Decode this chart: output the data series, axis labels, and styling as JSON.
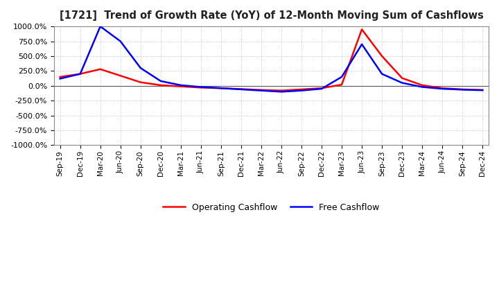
{
  "title": "[1721]  Trend of Growth Rate (YoY) of 12-Month Moving Sum of Cashflows",
  "ylim": [
    -1000,
    1000
  ],
  "yticks": [
    -1000,
    -750,
    -500,
    -250,
    0,
    250,
    500,
    750,
    1000
  ],
  "background_color": "#ffffff",
  "grid_color": "#aaaaaa",
  "operating_color": "#ff0000",
  "free_color": "#0000ff",
  "legend_labels": [
    "Operating Cashflow",
    "Free Cashflow"
  ],
  "x_labels": [
    "Sep-19",
    "Dec-19",
    "Mar-20",
    "Jun-20",
    "Sep-20",
    "Dec-20",
    "Mar-21",
    "Jun-21",
    "Sep-21",
    "Dec-21",
    "Mar-22",
    "Jun-22",
    "Sep-22",
    "Dec-22",
    "Mar-23",
    "Jun-23",
    "Sep-23",
    "Dec-23",
    "Mar-24",
    "Jun-24",
    "Sep-24",
    "Dec-24"
  ],
  "operating_cashflow": [
    150,
    200,
    280,
    170,
    60,
    10,
    -10,
    -30,
    -40,
    -55,
    -70,
    -80,
    -60,
    -40,
    20,
    950,
    500,
    130,
    10,
    -40,
    -60,
    -70
  ],
  "free_cashflow": [
    120,
    200,
    1000,
    750,
    300,
    80,
    10,
    -20,
    -40,
    -60,
    -80,
    -100,
    -80,
    -50,
    150,
    700,
    200,
    50,
    -20,
    -50,
    -65,
    -75
  ]
}
